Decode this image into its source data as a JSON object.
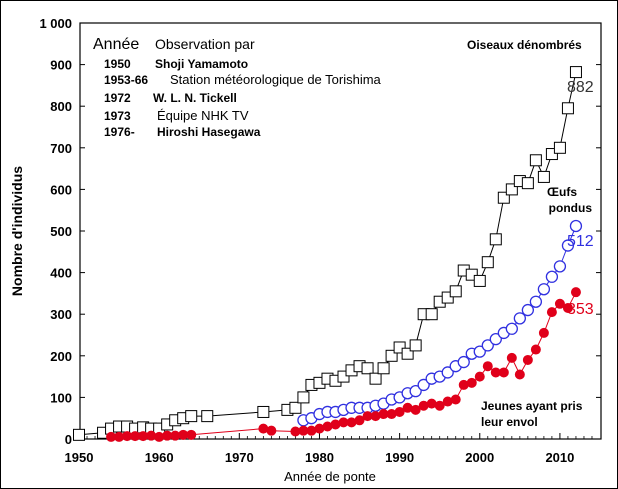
{
  "chart_data": {
    "type": "line",
    "xlabel": "Année de ponte",
    "ylabel": "Nombre d'individus",
    "xlim": [
      1950,
      2015
    ],
    "ylim": [
      0,
      1000
    ],
    "x_ticks": [
      1950,
      1960,
      1970,
      1980,
      1990,
      2000,
      2010
    ],
    "y_ticks": [
      0,
      100,
      200,
      300,
      400,
      500,
      600,
      700,
      800,
      900,
      1000
    ],
    "y_tick_labels": [
      "0",
      "100",
      "200",
      "300",
      "400",
      "500",
      "600",
      "700",
      "800",
      "900",
      "1 000"
    ],
    "series": [
      {
        "name": "Oiseaux dénombrés",
        "color": "#000000",
        "marker": "square",
        "end_label": "882",
        "points": [
          [
            1950,
            10
          ],
          [
            1953,
            15
          ],
          [
            1954,
            25
          ],
          [
            1955,
            30
          ],
          [
            1956,
            30
          ],
          [
            1957,
            25
          ],
          [
            1958,
            28
          ],
          [
            1959,
            25
          ],
          [
            1960,
            25
          ],
          [
            1961,
            35
          ],
          [
            1962,
            45
          ],
          [
            1963,
            50
          ],
          [
            1964,
            55
          ],
          [
            1966,
            55
          ],
          [
            1973,
            65
          ],
          [
            1976,
            70
          ],
          [
            1977,
            75
          ],
          [
            1978,
            100
          ],
          [
            1979,
            130
          ],
          [
            1980,
            135
          ],
          [
            1981,
            145
          ],
          [
            1982,
            140
          ],
          [
            1983,
            150
          ],
          [
            1984,
            165
          ],
          [
            1985,
            175
          ],
          [
            1986,
            170
          ],
          [
            1987,
            145
          ],
          [
            1988,
            170
          ],
          [
            1989,
            200
          ],
          [
            1990,
            220
          ],
          [
            1991,
            205
          ],
          [
            1992,
            225
          ],
          [
            1993,
            300
          ],
          [
            1994,
            300
          ],
          [
            1995,
            330
          ],
          [
            1996,
            340
          ],
          [
            1997,
            355
          ],
          [
            1998,
            405
          ],
          [
            1999,
            395
          ],
          [
            2000,
            380
          ],
          [
            2001,
            425
          ],
          [
            2002,
            480
          ],
          [
            2003,
            580
          ],
          [
            2004,
            600
          ],
          [
            2005,
            620
          ],
          [
            2006,
            615
          ],
          [
            2007,
            670
          ],
          [
            2008,
            630
          ],
          [
            2009,
            685
          ],
          [
            2010,
            700
          ],
          [
            2011,
            795
          ],
          [
            2012,
            882
          ]
        ]
      },
      {
        "name": "Œufs pondus",
        "color": "#3030e0",
        "marker": "circle",
        "end_label": "512",
        "points": [
          [
            1978,
            45
          ],
          [
            1979,
            50
          ],
          [
            1980,
            60
          ],
          [
            1981,
            65
          ],
          [
            1982,
            65
          ],
          [
            1983,
            70
          ],
          [
            1984,
            75
          ],
          [
            1985,
            75
          ],
          [
            1986,
            75
          ],
          [
            1987,
            80
          ],
          [
            1988,
            85
          ],
          [
            1989,
            95
          ],
          [
            1990,
            100
          ],
          [
            1991,
            110
          ],
          [
            1992,
            115
          ],
          [
            1993,
            130
          ],
          [
            1994,
            145
          ],
          [
            1995,
            150
          ],
          [
            1996,
            160
          ],
          [
            1997,
            175
          ],
          [
            1998,
            185
          ],
          [
            1999,
            205
          ],
          [
            2000,
            210
          ],
          [
            2001,
            225
          ],
          [
            2002,
            240
          ],
          [
            2003,
            255
          ],
          [
            2004,
            265
          ],
          [
            2005,
            290
          ],
          [
            2006,
            310
          ],
          [
            2007,
            330
          ],
          [
            2008,
            360
          ],
          [
            2009,
            390
          ],
          [
            2010,
            415
          ],
          [
            2011,
            465
          ],
          [
            2012,
            512
          ]
        ]
      },
      {
        "name": "Jeunes ayant pris leur envol",
        "color": "#e0001a",
        "marker": "filled-circle",
        "end_label": "353",
        "points": [
          [
            1954,
            5
          ],
          [
            1955,
            5
          ],
          [
            1956,
            7
          ],
          [
            1957,
            7
          ],
          [
            1958,
            7
          ],
          [
            1959,
            8
          ],
          [
            1960,
            5
          ],
          [
            1961,
            8
          ],
          [
            1962,
            8
          ],
          [
            1963,
            10
          ],
          [
            1964,
            10
          ],
          [
            1973,
            25
          ],
          [
            1974,
            20
          ],
          [
            1977,
            18
          ],
          [
            1978,
            20
          ],
          [
            1979,
            20
          ],
          [
            1980,
            25
          ],
          [
            1981,
            30
          ],
          [
            1982,
            35
          ],
          [
            1983,
            40
          ],
          [
            1984,
            40
          ],
          [
            1985,
            45
          ],
          [
            1986,
            55
          ],
          [
            1987,
            55
          ],
          [
            1988,
            60
          ],
          [
            1989,
            60
          ],
          [
            1990,
            65
          ],
          [
            1991,
            75
          ],
          [
            1992,
            70
          ],
          [
            1993,
            80
          ],
          [
            1994,
            85
          ],
          [
            1995,
            80
          ],
          [
            1996,
            90
          ],
          [
            1997,
            95
          ],
          [
            1998,
            130
          ],
          [
            1999,
            135
          ],
          [
            2000,
            150
          ],
          [
            2001,
            175
          ],
          [
            2002,
            160
          ],
          [
            2003,
            160
          ],
          [
            2004,
            195
          ],
          [
            2005,
            155
          ],
          [
            2006,
            190
          ],
          [
            2007,
            215
          ],
          [
            2008,
            255
          ],
          [
            2009,
            305
          ],
          [
            2010,
            325
          ],
          [
            2011,
            315
          ],
          [
            2012,
            353
          ]
        ]
      }
    ],
    "annotations": {
      "legend_header_year": "Année",
      "legend_header_observer": "Observation par",
      "observers": [
        {
          "year": "1950",
          "name": "Shoji Yamamoto"
        },
        {
          "year": "1953-66",
          "name": "Station météorologique de Torishima"
        },
        {
          "year": "1972",
          "name": "W. L. N. Tickell"
        },
        {
          "year": "1973",
          "name": "Équipe NHK TV"
        },
        {
          "year": "1976-",
          "name": "Hiroshi Hasegawa"
        }
      ],
      "counted_label": "Oiseaux dénombrés",
      "eggs_label_line1": "Œufs",
      "eggs_label_line2": "pondus",
      "fledged_label_line1": "Jeunes ayant pris",
      "fledged_label_line2": "leur envol"
    }
  }
}
